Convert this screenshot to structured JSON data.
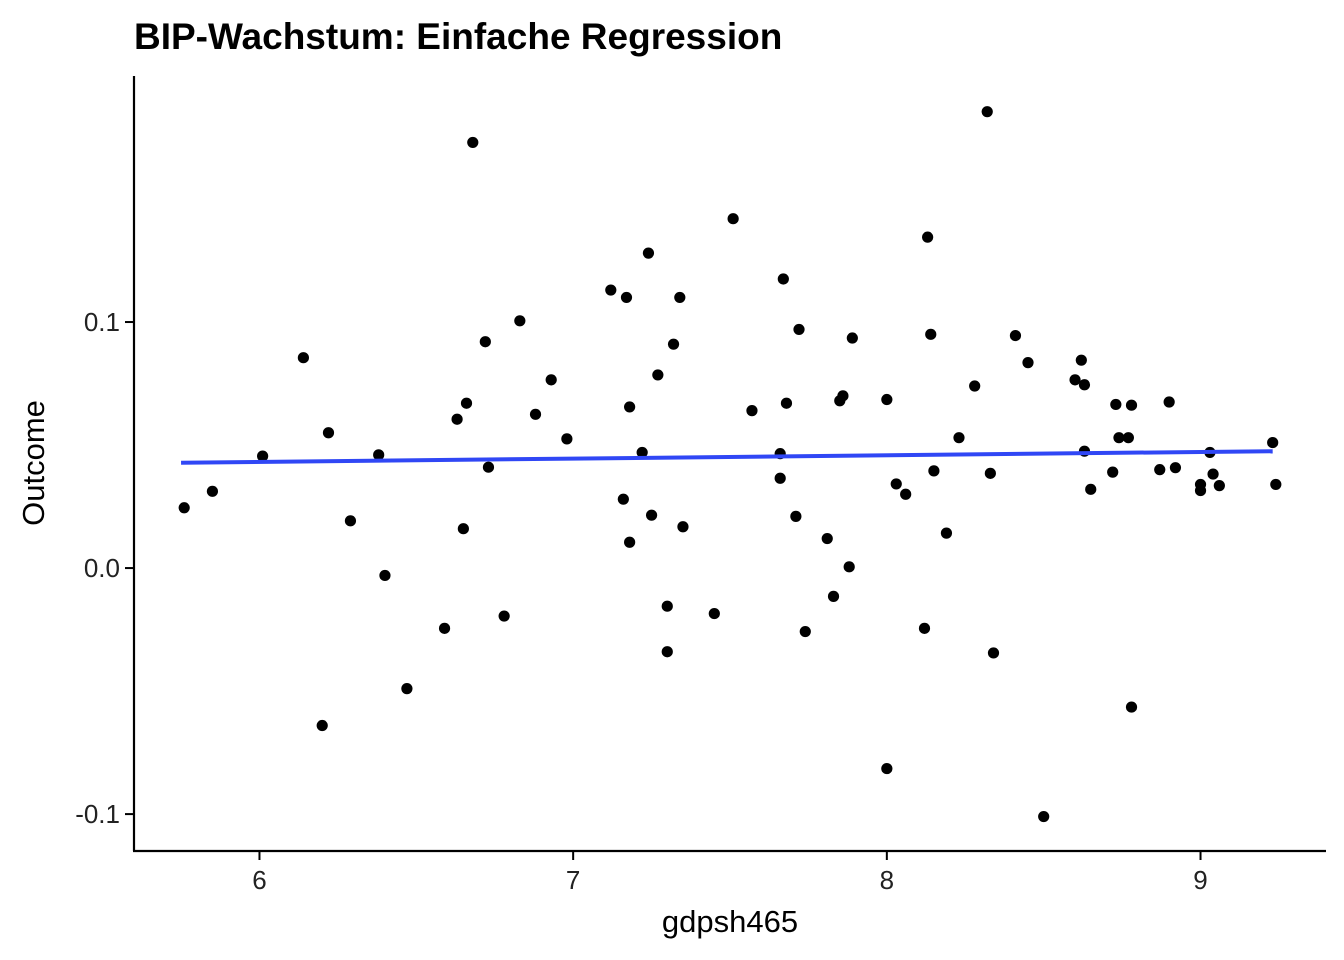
{
  "chart_data": {
    "type": "scatter",
    "title": "BIP-Wachstum: Einfache Regression",
    "xlabel": "gdpsh465",
    "ylabel": "Outcome",
    "xlim": [
      5.6,
      9.4
    ],
    "ylim": [
      -0.115,
      0.2
    ],
    "x_ticks": [
      6,
      7,
      8,
      9
    ],
    "x_tick_labels": [
      "6",
      "7",
      "8",
      "9"
    ],
    "y_ticks": [
      -0.1,
      0.0,
      0.1
    ],
    "y_tick_labels": [
      "-0.1",
      "0.0",
      "0.1"
    ],
    "grid": false,
    "point_color": "#000000",
    "line_color": "#3047f5",
    "regression_line": {
      "x": [
        5.75,
        9.23
      ],
      "y": [
        0.0428,
        0.0475
      ]
    },
    "points": [
      {
        "x": 5.76,
        "y": 0.0245
      },
      {
        "x": 5.85,
        "y": 0.0312
      },
      {
        "x": 6.01,
        "y": 0.0455
      },
      {
        "x": 6.14,
        "y": 0.0855
      },
      {
        "x": 6.2,
        "y": -0.064
      },
      {
        "x": 6.22,
        "y": 0.055
      },
      {
        "x": 6.29,
        "y": 0.0192
      },
      {
        "x": 6.38,
        "y": 0.046
      },
      {
        "x": 6.4,
        "y": -0.003
      },
      {
        "x": 6.47,
        "y": -0.049
      },
      {
        "x": 6.59,
        "y": -0.0245
      },
      {
        "x": 6.63,
        "y": 0.0605
      },
      {
        "x": 6.65,
        "y": 0.016
      },
      {
        "x": 6.66,
        "y": 0.067
      },
      {
        "x": 6.68,
        "y": 0.173
      },
      {
        "x": 6.72,
        "y": 0.092
      },
      {
        "x": 6.73,
        "y": 0.041
      },
      {
        "x": 6.78,
        "y": -0.0195
      },
      {
        "x": 6.83,
        "y": 0.1005
      },
      {
        "x": 6.88,
        "y": 0.0625
      },
      {
        "x": 6.93,
        "y": 0.0765
      },
      {
        "x": 6.98,
        "y": 0.0525
      },
      {
        "x": 7.12,
        "y": 0.113
      },
      {
        "x": 7.16,
        "y": 0.028
      },
      {
        "x": 7.17,
        "y": 0.11
      },
      {
        "x": 7.18,
        "y": 0.0655
      },
      {
        "x": 7.18,
        "y": 0.0105
      },
      {
        "x": 7.22,
        "y": 0.047
      },
      {
        "x": 7.24,
        "y": 0.128
      },
      {
        "x": 7.25,
        "y": 0.0215
      },
      {
        "x": 7.27,
        "y": 0.0785
      },
      {
        "x": 7.3,
        "y": -0.0155
      },
      {
        "x": 7.3,
        "y": -0.034
      },
      {
        "x": 7.32,
        "y": 0.091
      },
      {
        "x": 7.34,
        "y": 0.11
      },
      {
        "x": 7.35,
        "y": 0.0168
      },
      {
        "x": 7.45,
        "y": -0.0185
      },
      {
        "x": 7.51,
        "y": 0.142
      },
      {
        "x": 7.57,
        "y": 0.064
      },
      {
        "x": 7.66,
        "y": 0.0365
      },
      {
        "x": 7.66,
        "y": 0.0465
      },
      {
        "x": 7.67,
        "y": 0.1175
      },
      {
        "x": 7.68,
        "y": 0.067
      },
      {
        "x": 7.71,
        "y": 0.021
      },
      {
        "x": 7.72,
        "y": 0.097
      },
      {
        "x": 7.74,
        "y": -0.0258
      },
      {
        "x": 7.81,
        "y": 0.012
      },
      {
        "x": 7.83,
        "y": -0.0115
      },
      {
        "x": 7.85,
        "y": 0.068
      },
      {
        "x": 7.86,
        "y": 0.07
      },
      {
        "x": 7.88,
        "y": 0.0005
      },
      {
        "x": 7.89,
        "y": 0.0935
      },
      {
        "x": 8.0,
        "y": -0.0815
      },
      {
        "x": 8.0,
        "y": 0.0685
      },
      {
        "x": 8.03,
        "y": 0.0342
      },
      {
        "x": 8.06,
        "y": 0.03
      },
      {
        "x": 8.12,
        "y": -0.0245
      },
      {
        "x": 8.13,
        "y": 0.1345
      },
      {
        "x": 8.14,
        "y": 0.095
      },
      {
        "x": 8.15,
        "y": 0.0395
      },
      {
        "x": 8.19,
        "y": 0.0142
      },
      {
        "x": 8.23,
        "y": 0.053
      },
      {
        "x": 8.28,
        "y": 0.074
      },
      {
        "x": 8.32,
        "y": 0.1855
      },
      {
        "x": 8.33,
        "y": 0.0385
      },
      {
        "x": 8.34,
        "y": -0.0345
      },
      {
        "x": 8.41,
        "y": 0.0945
      },
      {
        "x": 8.45,
        "y": 0.0835
      },
      {
        "x": 8.5,
        "y": -0.101
      },
      {
        "x": 8.6,
        "y": 0.0765
      },
      {
        "x": 8.62,
        "y": 0.0845
      },
      {
        "x": 8.63,
        "y": 0.0745
      },
      {
        "x": 8.63,
        "y": 0.0475
      },
      {
        "x": 8.65,
        "y": 0.032
      },
      {
        "x": 8.72,
        "y": 0.039
      },
      {
        "x": 8.73,
        "y": 0.0665
      },
      {
        "x": 8.74,
        "y": 0.053
      },
      {
        "x": 8.77,
        "y": 0.053
      },
      {
        "x": 8.78,
        "y": 0.0662
      },
      {
        "x": 8.78,
        "y": -0.0565
      },
      {
        "x": 8.87,
        "y": 0.04
      },
      {
        "x": 8.9,
        "y": 0.0675
      },
      {
        "x": 8.92,
        "y": 0.0408
      },
      {
        "x": 9.0,
        "y": 0.0315
      },
      {
        "x": 9.0,
        "y": 0.034
      },
      {
        "x": 9.03,
        "y": 0.047
      },
      {
        "x": 9.04,
        "y": 0.0382
      },
      {
        "x": 9.06,
        "y": 0.0335
      },
      {
        "x": 9.23,
        "y": 0.051
      },
      {
        "x": 9.24,
        "y": 0.034
      }
    ]
  }
}
